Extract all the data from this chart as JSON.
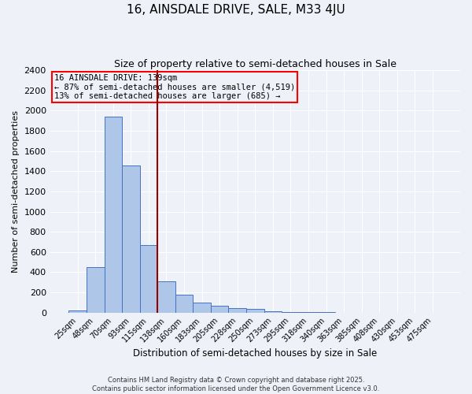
{
  "title": "16, AINSDALE DRIVE, SALE, M33 4JU",
  "subtitle": "Size of property relative to semi-detached houses in Sale",
  "xlabel": "Distribution of semi-detached houses by size in Sale",
  "ylabel": "Number of semi-detached properties",
  "bar_labels": [
    "25sqm",
    "48sqm",
    "70sqm",
    "93sqm",
    "115sqm",
    "138sqm",
    "160sqm",
    "183sqm",
    "205sqm",
    "228sqm",
    "250sqm",
    "273sqm",
    "295sqm",
    "318sqm",
    "340sqm",
    "363sqm",
    "385sqm",
    "408sqm",
    "430sqm",
    "453sqm",
    "475sqm"
  ],
  "bar_values": [
    18,
    450,
    1940,
    1460,
    670,
    310,
    180,
    100,
    65,
    45,
    35,
    15,
    5,
    2,
    8,
    0,
    0,
    0,
    0,
    0,
    0
  ],
  "bar_color": "#aec6e8",
  "bar_edge_color": "#4472c4",
  "vline_x": 4.5,
  "vline_color": "#990000",
  "annotation_title": "16 AINSDALE DRIVE: 139sqm",
  "annotation_line1": "← 87% of semi-detached houses are smaller (4,519)",
  "annotation_line2": "13% of semi-detached houses are larger (685) →",
  "annotation_box_color": "red",
  "ylim": [
    0,
    2400
  ],
  "yticks": [
    0,
    200,
    400,
    600,
    800,
    1000,
    1200,
    1400,
    1600,
    1800,
    2000,
    2200,
    2400
  ],
  "footer_line1": "Contains HM Land Registry data © Crown copyright and database right 2025.",
  "footer_line2": "Contains public sector information licensed under the Open Government Licence v3.0.",
  "bg_color": "#eef2f8",
  "grid_color": "white"
}
